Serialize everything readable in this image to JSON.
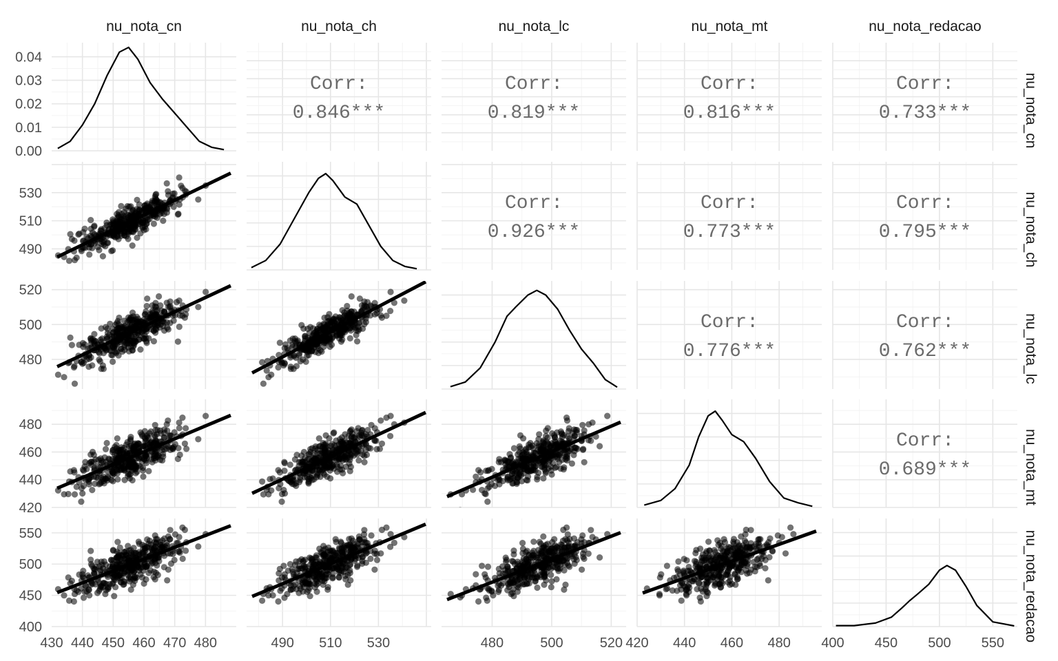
{
  "chart_data": {
    "type": "scatter",
    "title": "",
    "variables": [
      {
        "name": "nu_nota_cn",
        "range": [
          430,
          490
        ],
        "major": [
          440,
          450,
          460,
          470,
          480
        ],
        "minor": [
          435,
          445,
          455,
          465,
          475,
          485
        ],
        "ticks": [
          430,
          440,
          450,
          460,
          470,
          480
        ],
        "tick_labels": [
          "430",
          "440",
          "450",
          "460",
          "470",
          "480"
        ],
        "mean": 455.5,
        "sd": 8.5
      },
      {
        "name": "nu_nota_ch",
        "range": [
          475,
          552
        ],
        "major": [
          490,
          510,
          530,
          550
        ],
        "minor": [
          480,
          500,
          520,
          540
        ],
        "ticks": [
          490,
          510,
          530
        ],
        "tick_labels": [
          "490",
          "510",
          "530"
        ],
        "mean": 509,
        "sd": 10.5
      },
      {
        "name": "nu_nota_lc",
        "range": [
          463,
          525
        ],
        "major": [
          480,
          500,
          520
        ],
        "minor": [
          470,
          490,
          510
        ],
        "ticks": [
          480,
          500,
          520
        ],
        "tick_labels": [
          "480",
          "500",
          "520"
        ],
        "mean": 495,
        "sd": 9
      },
      {
        "name": "nu_nota_mt",
        "range": [
          420,
          498
        ],
        "major": [
          420,
          440,
          460,
          480
        ],
        "minor": [
          430,
          450,
          470,
          490
        ],
        "ticks": [
          420,
          440,
          460,
          480
        ],
        "tick_labels": [
          "420",
          "440",
          "460",
          "480"
        ],
        "mean": 456,
        "sd": 11
      },
      {
        "name": "nu_nota_redacao",
        "range": [
          400,
          573
        ],
        "major": [
          400,
          450,
          500,
          550
        ],
        "minor": [
          425,
          475,
          525
        ],
        "ticks": [
          400,
          450,
          500,
          550
        ],
        "tick_labels": [
          "400",
          "450",
          "500",
          "550"
        ],
        "mean": 498,
        "sd": 22
      }
    ],
    "density_axis": {
      "ticks": [
        0.0,
        0.01,
        0.02,
        0.03,
        0.04
      ],
      "tick_labels": [
        "0.00",
        "0.01",
        "0.02",
        "0.03",
        "0.04"
      ],
      "range": [
        0,
        0.046
      ]
    },
    "correlations": [
      {
        "row": 0,
        "col": 1,
        "label": "Corr:",
        "value": "0.846***",
        "r": 0.846
      },
      {
        "row": 0,
        "col": 2,
        "label": "Corr:",
        "value": "0.819***",
        "r": 0.819
      },
      {
        "row": 0,
        "col": 3,
        "label": "Corr:",
        "value": "0.816***",
        "r": 0.816
      },
      {
        "row": 0,
        "col": 4,
        "label": "Corr:",
        "value": "0.733***",
        "r": 0.733
      },
      {
        "row": 1,
        "col": 2,
        "label": "Corr:",
        "value": "0.926***",
        "r": 0.926
      },
      {
        "row": 1,
        "col": 3,
        "label": "Corr:",
        "value": "0.773***",
        "r": 0.773
      },
      {
        "row": 1,
        "col": 4,
        "label": "Corr:",
        "value": "0.795***",
        "r": 0.795
      },
      {
        "row": 2,
        "col": 3,
        "label": "Corr:",
        "value": "0.776***",
        "r": 0.776
      },
      {
        "row": 2,
        "col": 4,
        "label": "Corr:",
        "value": "0.762***",
        "r": 0.762
      },
      {
        "row": 3,
        "col": 4,
        "label": "Corr:",
        "value": "0.689***",
        "r": 0.689
      }
    ],
    "densities": [
      {
        "var": "nu_nota_cn",
        "x": [
          432,
          436,
          440,
          444,
          448,
          452,
          455,
          458,
          462,
          466,
          470,
          474,
          478,
          482,
          486
        ],
        "y": [
          0.001,
          0.004,
          0.011,
          0.02,
          0.032,
          0.042,
          0.044,
          0.039,
          0.029,
          0.022,
          0.016,
          0.01,
          0.004,
          0.0015,
          0.0005
        ]
      },
      {
        "var": "nu_nota_ch",
        "x": [
          477,
          483,
          489,
          495,
          501,
          505,
          508,
          511,
          516,
          521,
          526,
          531,
          536,
          541,
          546
        ],
        "y": [
          0.001,
          0.004,
          0.011,
          0.022,
          0.033,
          0.039,
          0.041,
          0.038,
          0.031,
          0.028,
          0.019,
          0.01,
          0.004,
          0.0015,
          0.0005
        ]
      },
      {
        "var": "nu_nota_lc",
        "x": [
          466,
          471,
          476,
          481,
          485,
          488,
          492,
          495,
          498,
          502,
          506,
          510,
          514,
          518,
          522
        ],
        "y": [
          0.001,
          0.003,
          0.009,
          0.02,
          0.031,
          0.035,
          0.04,
          0.042,
          0.04,
          0.034,
          0.025,
          0.017,
          0.011,
          0.004,
          0.0008
        ]
      },
      {
        "var": "nu_nota_mt",
        "x": [
          423,
          430,
          436,
          442,
          446,
          450,
          453,
          456,
          460,
          465,
          470,
          476,
          482,
          488,
          494
        ],
        "y": [
          0.001,
          0.003,
          0.008,
          0.018,
          0.03,
          0.039,
          0.041,
          0.037,
          0.031,
          0.028,
          0.021,
          0.011,
          0.004,
          0.002,
          0.0005
        ]
      },
      {
        "var": "nu_nota_redacao",
        "x": [
          403,
          420,
          440,
          455,
          465,
          472,
          480,
          490,
          500,
          507,
          515,
          525,
          535,
          550,
          570
        ],
        "y": [
          0.0004,
          0.0004,
          0.0015,
          0.004,
          0.008,
          0.011,
          0.014,
          0.018,
          0.024,
          0.026,
          0.024,
          0.017,
          0.009,
          0.002,
          0.0003
        ]
      }
    ],
    "scatter_points_per_panel": 400,
    "regression_lines": true,
    "grid": true,
    "legend": "none"
  }
}
